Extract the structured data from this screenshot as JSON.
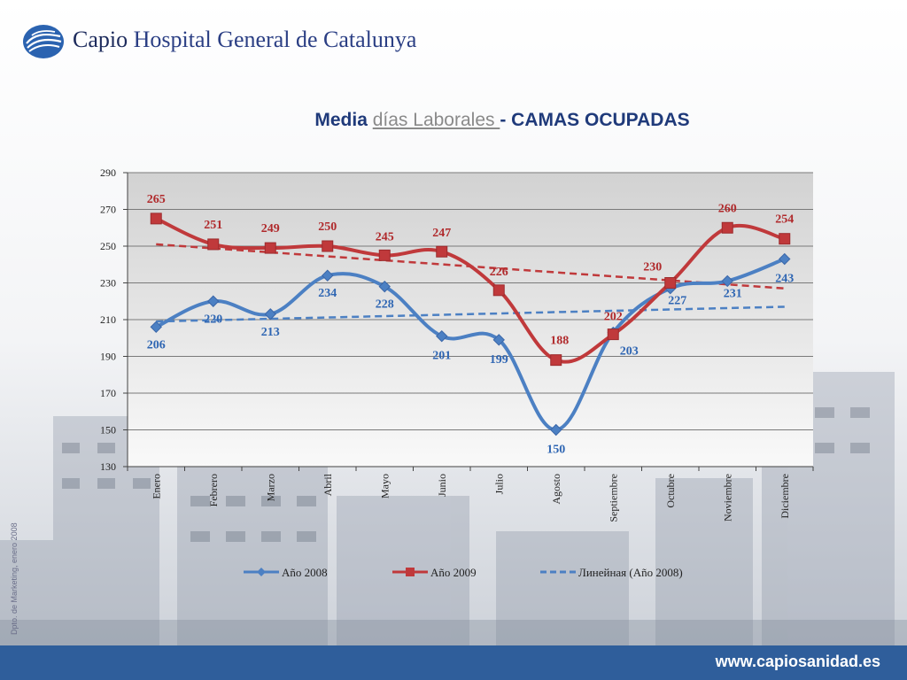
{
  "header": {
    "brand_part1": "Capio",
    "brand_part2": "Hospital General de Catalunya"
  },
  "title": {
    "part1": "Media ",
    "part2": "días Laborales ",
    "part3": "- CAMAS OCUPADAS"
  },
  "side_note": "Dpto. de Marketing, enero 2008",
  "footer": {
    "url": "www.capiosanidad.es"
  },
  "colors": {
    "series_2008": "#4c80c3",
    "series_2009": "#c0393b",
    "accent_dark": "#2f5e9b"
  },
  "chart_data": {
    "type": "line",
    "categories": [
      "Enero",
      "Febrero",
      "Marzo",
      "Abril",
      "Mayo",
      "Junio",
      "Julio",
      "Agosto",
      "Septiembre",
      "Octubre",
      "Noviembre",
      "Diciembre"
    ],
    "series": [
      {
        "name": "Año 2008",
        "values": [
          206,
          220,
          213,
          234,
          228,
          201,
          199,
          150,
          203,
          227,
          231,
          243
        ],
        "color": "#4c80c3",
        "marker": "diamond"
      },
      {
        "name": "Año 2009",
        "values": [
          265,
          251,
          249,
          250,
          245,
          247,
          226,
          188,
          202,
          230,
          260,
          254
        ],
        "color": "#c0393b",
        "marker": "square"
      }
    ],
    "trendlines": [
      {
        "name": "Линейная (Año 2008)",
        "from": 209,
        "to": 217,
        "color": "#4c80c3",
        "dashed": true
      },
      {
        "name": "",
        "from": 251,
        "to": 227,
        "color": "#c0393b",
        "dashed": true
      }
    ],
    "ylim": [
      130,
      290
    ],
    "yticks": [
      130,
      150,
      170,
      190,
      210,
      230,
      250,
      270,
      290
    ],
    "grid": true,
    "legend_position": "bottom"
  }
}
